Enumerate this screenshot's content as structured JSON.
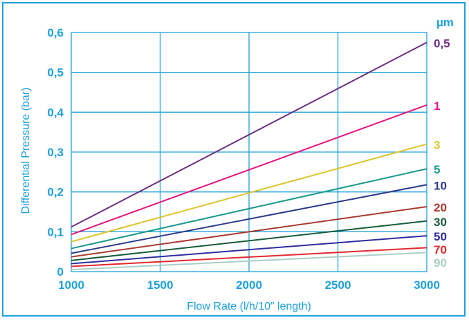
{
  "chart_data": {
    "type": "line",
    "xlabel": "Flow Rate (l/h/10” length)",
    "ylabel": "Differential Pressure (bar)",
    "x_ticks": [
      "1000",
      "1500",
      "2000",
      "2500",
      "3000"
    ],
    "y_ticks": [
      "0",
      "0,1",
      "0,2",
      "0,3",
      "0,4",
      "0,5",
      "0,6"
    ],
    "xlim": [
      1000,
      3000
    ],
    "ylim": [
      0,
      0.6
    ],
    "grid": true,
    "legend_title": "µm",
    "x": [
      1000,
      3000
    ],
    "series": [
      {
        "name": "0,5",
        "color": "#6c2d82",
        "values": [
          0.112,
          0.575
        ]
      },
      {
        "name": "1",
        "color": "#e6127e",
        "values": [
          0.093,
          0.418
        ]
      },
      {
        "name": "3",
        "color": "#dcc52a",
        "values": [
          0.075,
          0.32
        ]
      },
      {
        "name": "5",
        "color": "#1a9a8c",
        "values": [
          0.058,
          0.258
        ]
      },
      {
        "name": "10",
        "color": "#2b3a8c",
        "values": [
          0.046,
          0.218
        ]
      },
      {
        "name": "20",
        "color": "#a8392f",
        "values": [
          0.037,
          0.163
        ]
      },
      {
        "name": "30",
        "color": "#165c3a",
        "values": [
          0.028,
          0.127
        ]
      },
      {
        "name": "50",
        "color": "#2f2c9e",
        "values": [
          0.02,
          0.09
        ]
      },
      {
        "name": "70",
        "color": "#e2282d",
        "values": [
          0.013,
          0.06
        ]
      },
      {
        "name": "90",
        "color": "#a9cfc6",
        "values": [
          0.005,
          0.048
        ]
      }
    ]
  }
}
